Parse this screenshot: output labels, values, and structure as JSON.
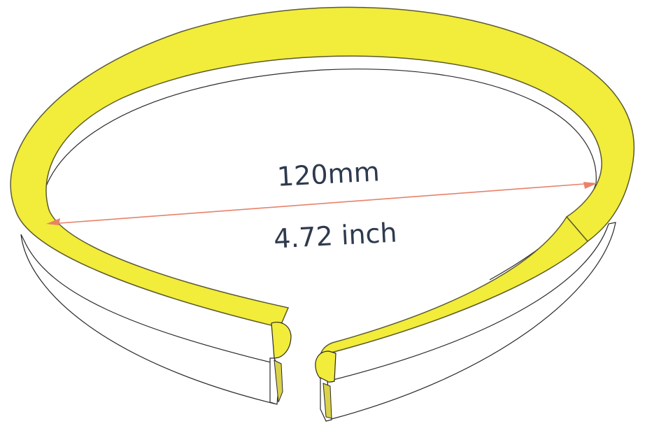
{
  "colors": {
    "strip_fill": "#f2ec3a",
    "strip_edge": "#5a5a32",
    "outline": "#2a2a2a",
    "dimension_line": "#e8826a",
    "text": "#2e3a4e",
    "background": "#ffffff"
  },
  "dimension": {
    "metric": "120mm",
    "imperial": "4.72 inch"
  }
}
